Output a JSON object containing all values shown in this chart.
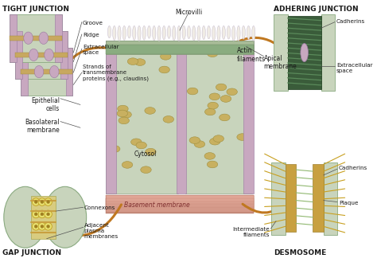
{
  "bg_color": "#f5f0e8",
  "tight_junction_label": "TIGHT JUNCTION",
  "adhering_junction_label": "ADHERING JUNCTION",
  "gap_junction_label": "GAP JUNCTION",
  "desmosome_label": "DESMOSOME",
  "c_green_light": "#c8d4bc",
  "c_green_mid": "#a8bc98",
  "c_green_dark": "#3a5c3a",
  "c_purple": "#c8a8c0",
  "c_pink": "#e0b8b0",
  "c_pink2": "#d4948a",
  "c_tan": "#c8a040",
  "c_brown_arrow": "#c07820",
  "c_white": "#f0ece4",
  "c_gray": "#888888",
  "c_olive": "#8a8a30",
  "c_yellow": "#d4c060"
}
